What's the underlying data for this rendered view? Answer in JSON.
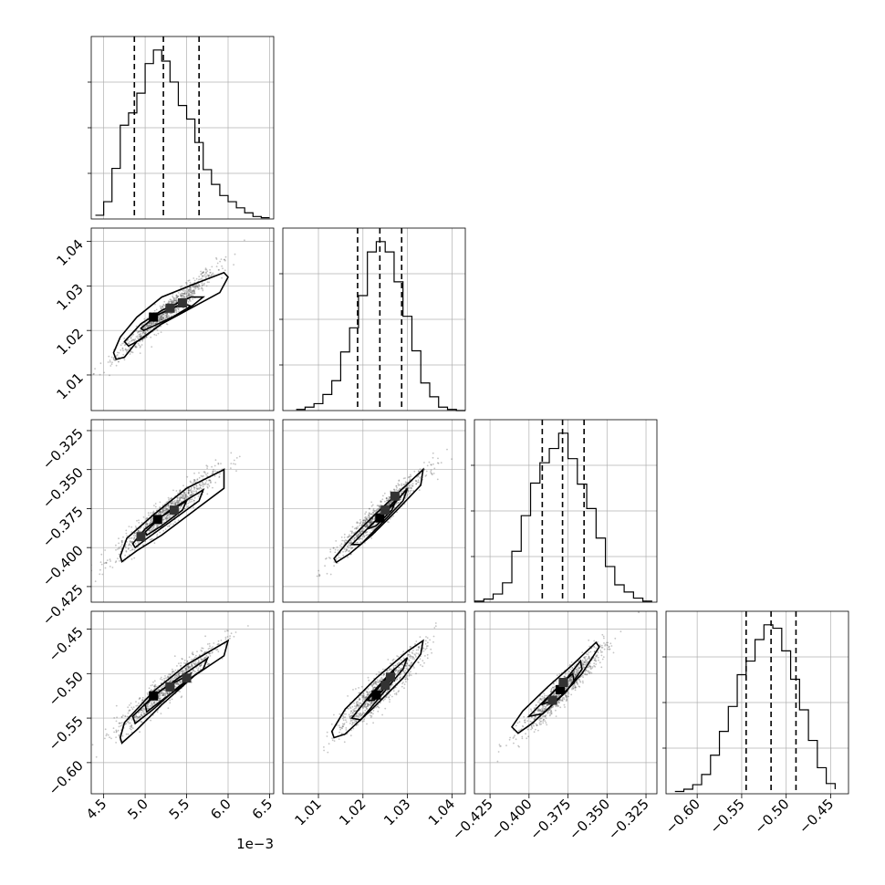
{
  "chart_data": {
    "type": "corner",
    "title": "",
    "offset_text": "1e−3",
    "colors": {
      "points": "#555555",
      "line": "#000000",
      "grid": "#b0b0b0"
    },
    "grid": true,
    "parameters": [
      {
        "index": 0,
        "label": "",
        "range": [
          4.35,
          6.55
        ],
        "ticks": [
          4.5,
          5.0,
          5.5,
          6.0,
          6.5
        ],
        "tick_labels": [
          "4.5",
          "5.0",
          "5.5",
          "6.0",
          "6.5"
        ],
        "scale": 0.001
      },
      {
        "index": 1,
        "label": "",
        "range": [
          1.002,
          1.043
        ],
        "ticks": [
          1.01,
          1.02,
          1.03,
          1.04
        ],
        "tick_labels": [
          "1.01",
          "1.02",
          "1.03",
          "1.04"
        ],
        "scale": 1
      },
      {
        "index": 2,
        "label": "",
        "range": [
          -0.435,
          -0.318
        ],
        "ticks": [
          -0.425,
          -0.4,
          -0.375,
          -0.35,
          -0.325
        ],
        "tick_labels": [
          "−0.425",
          "−0.400",
          "−0.375",
          "−0.350",
          "−0.325"
        ],
        "scale": 1
      },
      {
        "index": 3,
        "label": "",
        "range": [
          -0.635,
          -0.43
        ],
        "ticks": [
          -0.6,
          -0.55,
          -0.5,
          -0.45
        ],
        "tick_labels": [
          "−0.60",
          "−0.55",
          "−0.50",
          "−0.45"
        ],
        "scale": 1
      }
    ],
    "marginals": [
      {
        "param": 0,
        "median": 5.22,
        "quantiles": [
          4.87,
          5.22,
          5.65
        ],
        "bin_edges": [
          4.4,
          4.5,
          4.6,
          4.7,
          4.8,
          4.9,
          5.0,
          5.1,
          5.2,
          5.3,
          5.4,
          5.5,
          5.6,
          5.7,
          5.8,
          5.9,
          6.0,
          6.1,
          6.2,
          6.3,
          6.4,
          6.5
        ],
        "counts": [
          3,
          14,
          41,
          76,
          86,
          102,
          126,
          137,
          128,
          111,
          92,
          81,
          62,
          40,
          28,
          19,
          14,
          9,
          5,
          2,
          1
        ]
      },
      {
        "param": 1,
        "median": 1.0238,
        "quantiles": [
          1.0188,
          1.0238,
          1.0287
        ],
        "bin_edges": [
          1.005,
          1.007,
          1.009,
          1.011,
          1.013,
          1.015,
          1.017,
          1.019,
          1.021,
          1.023,
          1.025,
          1.027,
          1.029,
          1.031,
          1.033,
          1.035,
          1.037,
          1.039,
          1.041,
          1.043
        ],
        "counts": [
          1,
          3,
          6,
          14,
          26,
          51,
          72,
          100,
          138,
          147,
          138,
          112,
          82,
          52,
          24,
          12,
          3,
          1,
          0
        ]
      },
      {
        "param": 2,
        "median": -0.3785,
        "quantiles": [
          -0.3915,
          -0.3785,
          -0.3647
        ],
        "bin_edges": [
          -0.435,
          -0.429,
          -0.423,
          -0.417,
          -0.411,
          -0.405,
          -0.399,
          -0.393,
          -0.387,
          -0.381,
          -0.375,
          -0.369,
          -0.363,
          -0.357,
          -0.351,
          -0.345,
          -0.339,
          -0.333,
          -0.327,
          -0.321
        ],
        "counts": [
          1,
          3,
          8,
          19,
          50,
          85,
          117,
          137,
          151,
          166,
          141,
          116,
          92,
          63,
          35,
          17,
          10,
          4,
          1
        ]
      },
      {
        "param": 3,
        "median": -0.517,
        "quantiles": [
          -0.545,
          -0.517,
          -0.489
        ],
        "bin_edges": [
          -0.625,
          -0.615,
          -0.605,
          -0.595,
          -0.585,
          -0.575,
          -0.565,
          -0.555,
          -0.545,
          -0.535,
          -0.525,
          -0.515,
          -0.505,
          -0.495,
          -0.485,
          -0.475,
          -0.465,
          -0.455,
          -0.445
        ],
        "counts": [
          2,
          4,
          8,
          17,
          34,
          55,
          77,
          105,
          117,
          136,
          149,
          146,
          126,
          101,
          74,
          47,
          23,
          9,
          4
        ]
      }
    ],
    "joint": [
      {
        "x_param": 0,
        "y_param": 1,
        "mean": [
          5.25,
          1.024
        ],
        "sd": [
          0.3,
          0.005
        ],
        "corr": 0.97,
        "contours": [
          [
            [
              4.62,
              1.015
            ],
            [
              4.7,
              1.0185
            ],
            [
              4.9,
              1.023
            ],
            [
              5.2,
              1.0275
            ],
            [
              5.6,
              1.0305
            ],
            [
              5.95,
              1.033
            ],
            [
              6.0,
              1.032
            ],
            [
              5.9,
              1.0285
            ],
            [
              5.6,
              1.0255
            ],
            [
              5.2,
              1.0215
            ],
            [
              4.9,
              1.0175
            ],
            [
              4.75,
              1.014
            ],
            [
              4.65,
              1.0135
            ]
          ],
          [
            [
              4.75,
              1.0175
            ],
            [
              4.95,
              1.0215
            ],
            [
              5.2,
              1.0245
            ],
            [
              5.55,
              1.0275
            ],
            [
              5.7,
              1.0275
            ],
            [
              5.5,
              1.0245
            ],
            [
              5.2,
              1.0215
            ],
            [
              4.95,
              1.018
            ],
            [
              4.8,
              1.0165
            ]
          ],
          [
            [
              4.95,
              1.0205
            ],
            [
              5.15,
              1.0235
            ],
            [
              5.45,
              1.026
            ],
            [
              5.55,
              1.0255
            ],
            [
              5.35,
              1.0232
            ],
            [
              5.1,
              1.021
            ],
            [
              4.98,
              1.02
            ]
          ]
        ],
        "density_peaks": [
          [
            5.1,
            1.023
          ],
          [
            5.3,
            1.025
          ],
          [
            5.45,
            1.0262
          ]
        ]
      },
      {
        "x_param": 0,
        "y_param": 2,
        "mean": [
          5.25,
          -0.378
        ],
        "sd": [
          0.3,
          0.0135
        ],
        "corr": 0.95,
        "contours": [
          [
            [
              4.7,
              -0.4055
            ],
            [
              4.78,
              -0.394
            ],
            [
              5.1,
              -0.379
            ],
            [
              5.5,
              -0.362
            ],
            [
              5.95,
              -0.35
            ],
            [
              5.95,
              -0.362
            ],
            [
              5.6,
              -0.376
            ],
            [
              5.2,
              -0.392
            ],
            [
              4.9,
              -0.402
            ],
            [
              4.72,
              -0.409
            ]
          ],
          [
            [
              4.85,
              -0.3975
            ],
            [
              5.0,
              -0.388
            ],
            [
              5.3,
              -0.376
            ],
            [
              5.7,
              -0.363
            ],
            [
              5.65,
              -0.37
            ],
            [
              5.3,
              -0.3835
            ],
            [
              5.0,
              -0.395
            ],
            [
              4.88,
              -0.4
            ]
          ],
          [
            [
              5.0,
              -0.39
            ],
            [
              5.2,
              -0.38
            ],
            [
              5.5,
              -0.37
            ],
            [
              5.45,
              -0.376
            ],
            [
              5.2,
              -0.386
            ],
            [
              5.02,
              -0.392
            ]
          ]
        ],
        "density_peaks": [
          [
            5.15,
            -0.382
          ],
          [
            5.35,
            -0.376
          ],
          [
            4.95,
            -0.393
          ]
        ]
      },
      {
        "x_param": 0,
        "y_param": 3,
        "mean": [
          5.25,
          -0.517
        ],
        "sd": [
          0.3,
          0.025
        ],
        "corr": 0.95,
        "contours": [
          [
            [
              4.7,
              -0.572
            ],
            [
              4.75,
              -0.555
            ],
            [
              5.1,
              -0.52
            ],
            [
              5.5,
              -0.49
            ],
            [
              6.0,
              -0.463
            ],
            [
              5.95,
              -0.48
            ],
            [
              5.6,
              -0.502
            ],
            [
              5.2,
              -0.535
            ],
            [
              4.9,
              -0.563
            ],
            [
              4.72,
              -0.578
            ]
          ],
          [
            [
              4.85,
              -0.548
            ],
            [
              5.1,
              -0.525
            ],
            [
              5.4,
              -0.505
            ],
            [
              5.75,
              -0.483
            ],
            [
              5.7,
              -0.495
            ],
            [
              5.4,
              -0.515
            ],
            [
              5.1,
              -0.54
            ],
            [
              4.88,
              -0.556
            ]
          ],
          [
            [
              5.0,
              -0.535
            ],
            [
              5.2,
              -0.518
            ],
            [
              5.55,
              -0.5
            ],
            [
              5.5,
              -0.51
            ],
            [
              5.2,
              -0.53
            ],
            [
              5.02,
              -0.543
            ]
          ]
        ],
        "density_peaks": [
          [
            5.1,
            -0.525
          ],
          [
            5.3,
            -0.515
          ],
          [
            5.5,
            -0.505
          ]
        ]
      },
      {
        "x_param": 1,
        "y_param": 2,
        "mean": [
          1.024,
          -0.378
        ],
        "sd": [
          0.005,
          0.0135
        ],
        "corr": 0.96,
        "contours": [
          [
            [
              1.0135,
              -0.407
            ],
            [
              1.017,
              -0.395
            ],
            [
              1.023,
              -0.378
            ],
            [
              1.029,
              -0.362
            ],
            [
              1.0335,
              -0.35
            ],
            [
              1.033,
              -0.36
            ],
            [
              1.028,
              -0.375
            ],
            [
              1.022,
              -0.392
            ],
            [
              1.017,
              -0.404
            ],
            [
              1.014,
              -0.4095
            ]
          ],
          [
            [
              1.0175,
              -0.398
            ],
            [
              1.022,
              -0.385
            ],
            [
              1.027,
              -0.372
            ],
            [
              1.03,
              -0.362
            ],
            [
              1.029,
              -0.37
            ],
            [
              1.024,
              -0.385
            ],
            [
              1.0195,
              -0.398
            ]
          ],
          [
            [
              1.021,
              -0.388
            ],
            [
              1.0245,
              -0.378
            ],
            [
              1.0275,
              -0.369
            ],
            [
              1.0265,
              -0.376
            ],
            [
              1.023,
              -0.386
            ]
          ]
        ],
        "density_peaks": [
          [
            1.0238,
            -0.381
          ],
          [
            1.025,
            -0.376
          ],
          [
            1.0272,
            -0.367
          ]
        ]
      },
      {
        "x_param": 1,
        "y_param": 3,
        "mean": [
          1.024,
          -0.517
        ],
        "sd": [
          0.005,
          0.025
        ],
        "corr": 0.93,
        "contours": [
          [
            [
              1.013,
              -0.565
            ],
            [
              1.016,
              -0.54
            ],
            [
              1.023,
              -0.505
            ],
            [
              1.03,
              -0.475
            ],
            [
              1.0335,
              -0.463
            ],
            [
              1.033,
              -0.478
            ],
            [
              1.029,
              -0.505
            ],
            [
              1.022,
              -0.54
            ],
            [
              1.016,
              -0.568
            ],
            [
              1.0135,
              -0.572
            ]
          ],
          [
            [
              1.0175,
              -0.55
            ],
            [
              1.0215,
              -0.525
            ],
            [
              1.026,
              -0.5
            ],
            [
              1.03,
              -0.482
            ],
            [
              1.029,
              -0.495
            ],
            [
              1.0245,
              -0.522
            ],
            [
              1.0195,
              -0.552
            ]
          ],
          [
            [
              1.021,
              -0.53
            ],
            [
              1.0245,
              -0.51
            ],
            [
              1.027,
              -0.495
            ],
            [
              1.0262,
              -0.508
            ],
            [
              1.0225,
              -0.53
            ]
          ]
        ],
        "density_peaks": [
          [
            1.023,
            -0.524
          ],
          [
            1.025,
            -0.513
          ],
          [
            1.0262,
            -0.504
          ]
        ]
      },
      {
        "x_param": 2,
        "y_param": 3,
        "mean": [
          -0.378,
          -0.517
        ],
        "sd": [
          0.0135,
          0.025
        ],
        "corr": 0.95,
        "contours": [
          [
            [
              -0.411,
              -0.56
            ],
            [
              -0.404,
              -0.542
            ],
            [
              -0.388,
              -0.515
            ],
            [
              -0.372,
              -0.49
            ],
            [
              -0.357,
              -0.465
            ],
            [
              -0.355,
              -0.47
            ],
            [
              -0.366,
              -0.5
            ],
            [
              -0.382,
              -0.53
            ],
            [
              -0.398,
              -0.556
            ],
            [
              -0.407,
              -0.567
            ]
          ],
          [
            [
              -0.4,
              -0.548
            ],
            [
              -0.39,
              -0.53
            ],
            [
              -0.377,
              -0.508
            ],
            [
              -0.367,
              -0.486
            ],
            [
              -0.366,
              -0.495
            ],
            [
              -0.376,
              -0.52
            ],
            [
              -0.391,
              -0.545
            ]
          ],
          [
            [
              -0.392,
              -0.535
            ],
            [
              -0.383,
              -0.518
            ],
            [
              -0.372,
              -0.5
            ],
            [
              -0.371,
              -0.51
            ],
            [
              -0.381,
              -0.528
            ]
          ]
        ],
        "density_peaks": [
          [
            -0.38,
            -0.518
          ],
          [
            -0.378,
            -0.51
          ],
          [
            -0.385,
            -0.53
          ]
        ]
      }
    ]
  }
}
